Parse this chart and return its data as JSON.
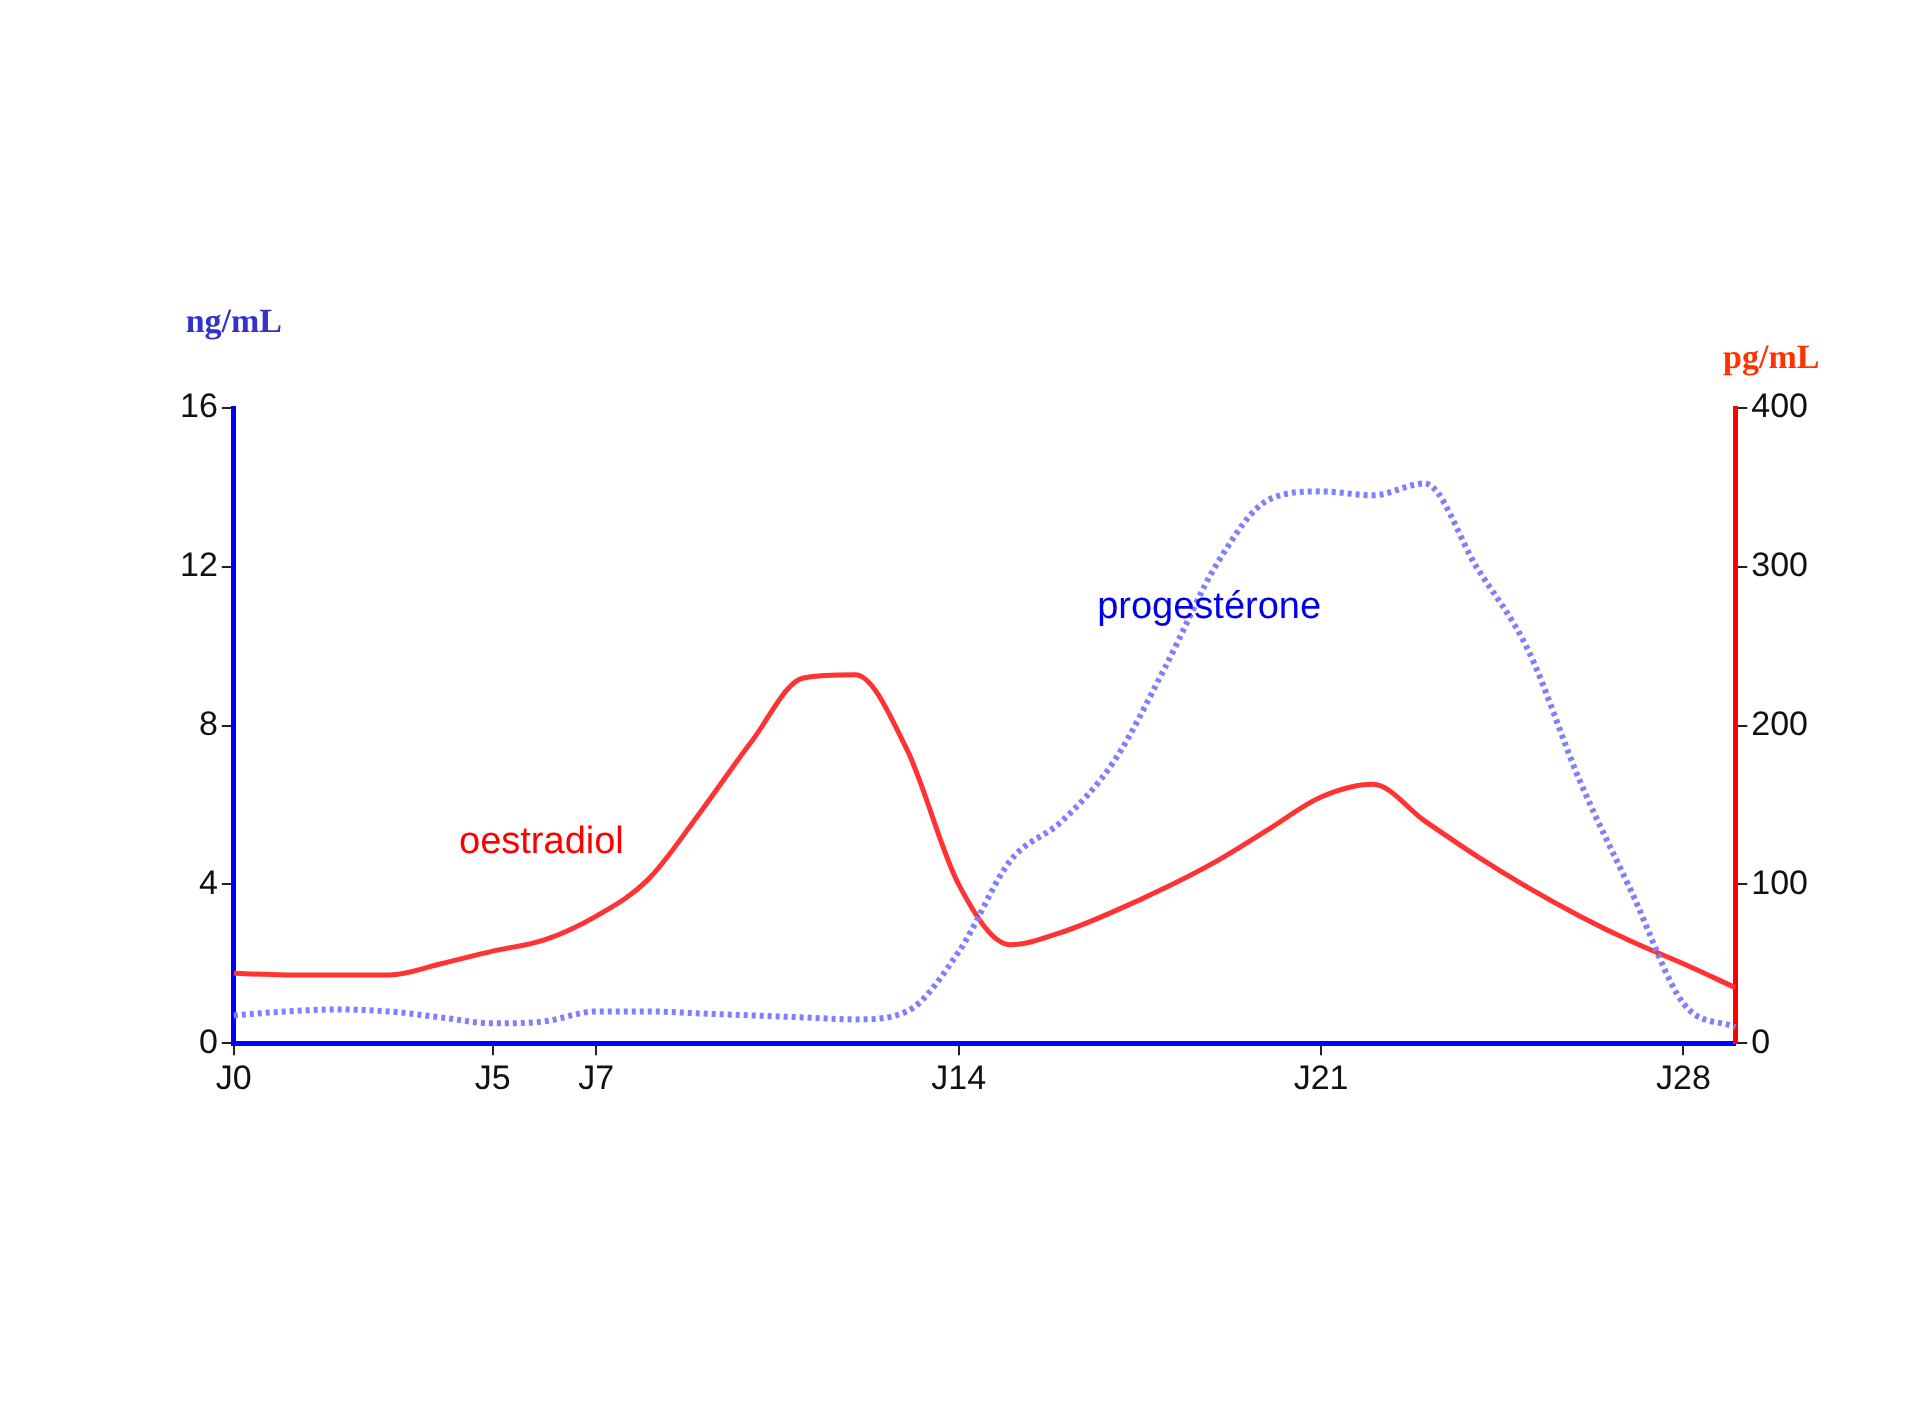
{
  "chart_data": {
    "type": "line",
    "ylabel": "ng/mL",
    "y2label": "pg/mL",
    "categories": [
      "J0",
      null,
      null,
      null,
      null,
      "J5",
      null,
      "J7",
      null,
      null,
      null,
      null,
      null,
      null,
      "J14",
      null,
      null,
      null,
      null,
      null,
      null,
      "J21",
      null,
      null,
      null,
      null,
      null,
      null,
      "J28",
      null
    ],
    "ylim": [
      0,
      16
    ],
    "yticks": [
      0,
      4,
      8,
      12,
      16
    ],
    "y2lim": [
      0,
      400
    ],
    "y2ticks": [
      0,
      100,
      200,
      300,
      400
    ],
    "grid": false,
    "legend": false,
    "marker": "none",
    "series": [
      {
        "name": "progestérone",
        "color": "#7f7fff",
        "line_style": "dotted",
        "values": [
          0.7,
          0.8,
          0.85,
          0.8,
          0.65,
          0.5,
          0.55,
          0.8,
          0.8,
          0.75,
          0.7,
          0.65,
          0.6,
          0.8,
          2.3,
          4.6,
          5.6,
          7.1,
          9.5,
          12.1,
          13.7,
          13.9,
          13.8,
          14.1,
          12.0,
          9.9,
          6.6,
          3.8,
          1.0,
          0.4
        ]
      },
      {
        "name": "oestradiol",
        "color": "#ff3333",
        "line_style": "solid",
        "axis": "y2",
        "values": [
          44,
          43,
          43,
          43,
          50,
          58,
          65,
          80,
          103,
          145,
          190,
          230,
          232,
          185,
          100,
          62,
          70,
          83,
          98,
          115,
          135,
          155,
          163,
          140,
          118,
          98,
          80,
          64,
          50,
          35
        ]
      }
    ]
  }
}
